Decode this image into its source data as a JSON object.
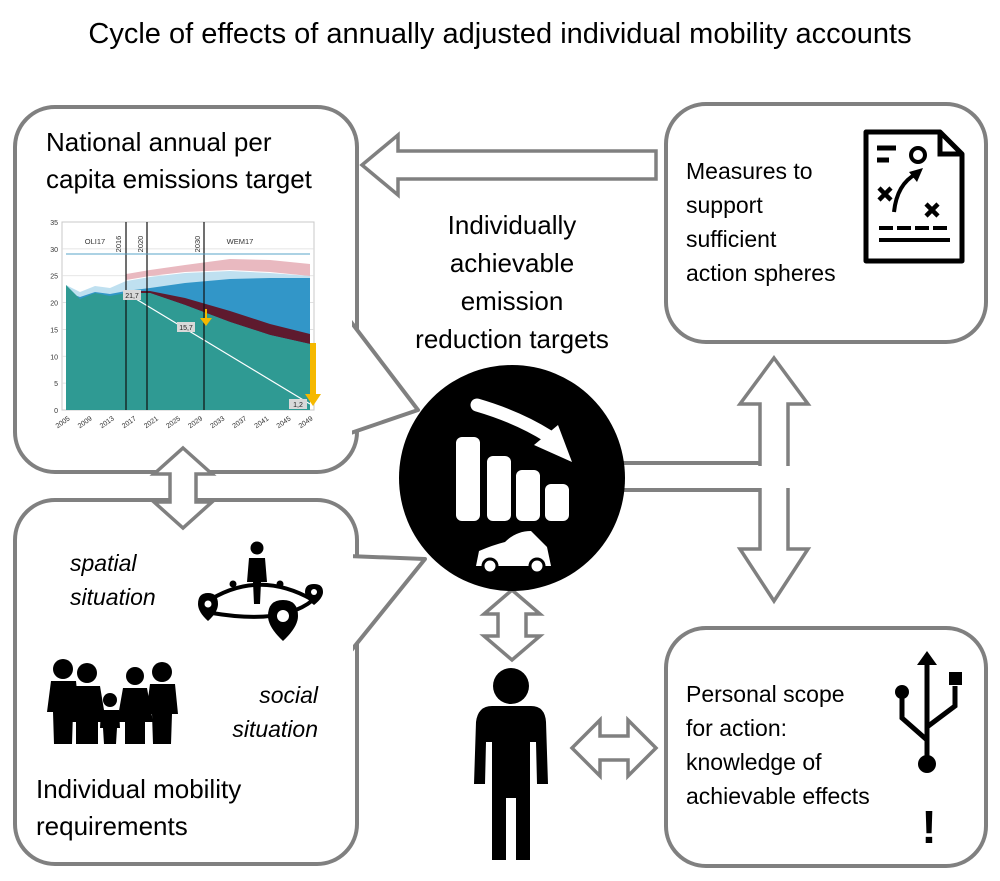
{
  "title": "Cycle of effects of annually adjusted individual mobility accounts",
  "center_label": [
    "Individually",
    "achievable",
    "emission",
    "reduction targets"
  ],
  "boxes": {
    "national": {
      "title": [
        "National annual per",
        "capita emissions target"
      ]
    },
    "measures": {
      "text": [
        "Measures to",
        "support",
        "sufficient",
        "action spheres"
      ],
      "icon": "strategy-document-icon"
    },
    "requirements": {
      "title": [
        "Individual mobility",
        "requirements"
      ],
      "spatial": [
        "spatial",
        "situation"
      ],
      "social": [
        "social",
        "situation"
      ],
      "icons": [
        "location-person-icon",
        "family-icon"
      ]
    },
    "personal": {
      "text": [
        "Personal scope",
        "for action:",
        "knowledge of",
        "achievable effects"
      ],
      "icon": "usb-icon",
      "mark": "!"
    }
  },
  "center_icons": [
    "decreasing-bars-icon",
    "car-icon"
  ],
  "person_icon": "person-icon",
  "chart_data": {
    "type": "area",
    "y_ticks": [
      "35",
      "30",
      "25",
      "20",
      "15",
      "10",
      "5",
      "0"
    ],
    "x_ticks": [
      "2005",
      "2009",
      "2013",
      "2017",
      "2021",
      "2025",
      "2029",
      "2033",
      "2037",
      "2041",
      "2045",
      "2049"
    ],
    "ylim": [
      0,
      35
    ],
    "period_labels": [
      "OLI17",
      "2016",
      "2020",
      "2030",
      "WEM17"
    ],
    "annotations": [
      "21,7",
      "15,7",
      "1,2"
    ],
    "colors": {
      "teal": "#2f9a93",
      "blue": "#3296c8",
      "maroon": "#5e1a2e",
      "light_blue": "#bfe0f0",
      "pink": "#e9b9c0",
      "arrow": "#f5b800"
    }
  }
}
